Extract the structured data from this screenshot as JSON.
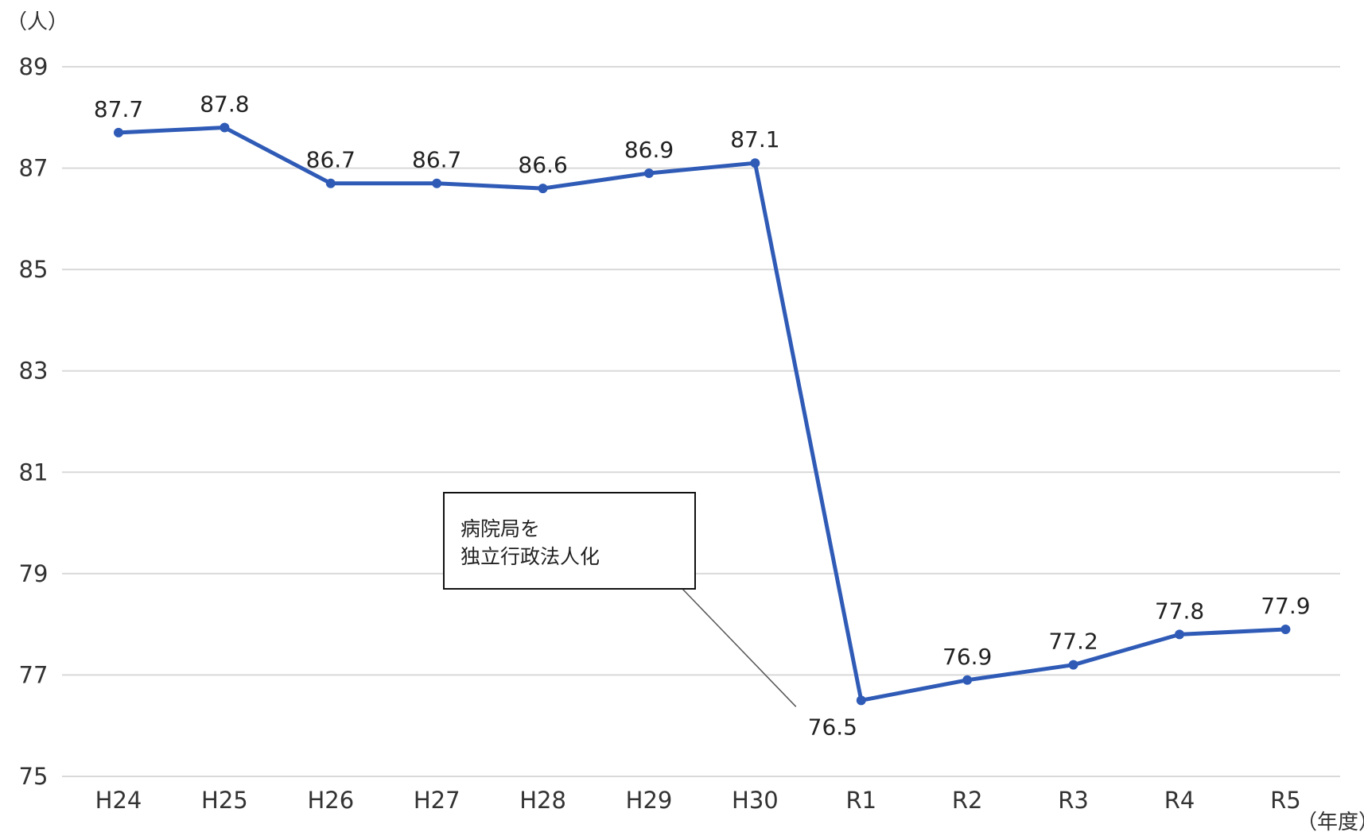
{
  "chart_data": {
    "type": "line",
    "y_unit_label": "（人）",
    "x_unit_label": "（年度）",
    "categories": [
      "H24",
      "H25",
      "H26",
      "H27",
      "H28",
      "H29",
      "H30",
      "R1",
      "R2",
      "R3",
      "R4",
      "R5"
    ],
    "series": [
      {
        "values": [
          87.7,
          87.8,
          86.7,
          86.7,
          86.6,
          86.9,
          87.1,
          76.5,
          76.9,
          77.2,
          77.8,
          77.9
        ]
      }
    ],
    "ylim": [
      75,
      89
    ],
    "yticks": [
      75,
      77,
      79,
      81,
      83,
      85,
      87,
      89
    ],
    "grid": true,
    "line_color": "#2f5bb7",
    "annotation": {
      "lines": [
        "病院局を",
        "独立行政法人化"
      ],
      "points_to": "R1"
    }
  }
}
